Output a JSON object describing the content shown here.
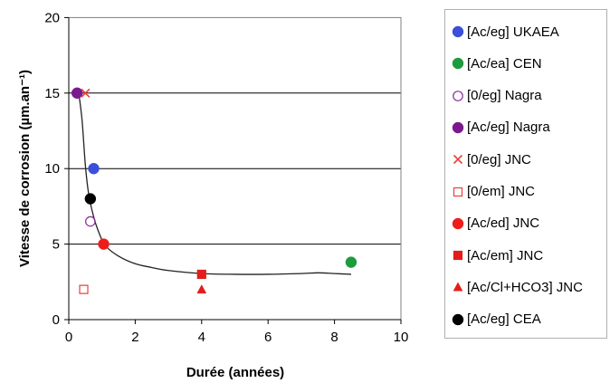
{
  "chart_data": {
    "type": "scatter",
    "title": "",
    "xlabel": "Durée (années)",
    "ylabel": "Vitesse de corrosion (µm.an⁻¹)",
    "xlim": [
      0,
      10
    ],
    "ylim": [
      0,
      20
    ],
    "xticks": [
      "0",
      "2",
      "4",
      "6",
      "8",
      "10"
    ],
    "yticks": [
      "0",
      "5",
      "10",
      "15",
      "20"
    ],
    "grid": "horizontal",
    "legend_position": "right",
    "series": [
      {
        "name": "[Ac/eg] UKAEA",
        "marker": "circle",
        "color": "#3b4fd9",
        "filled": true,
        "points": [
          [
            0.75,
            10.0
          ]
        ]
      },
      {
        "name": "[Ac/ea] CEN",
        "marker": "circle",
        "color": "#1e9b3c",
        "filled": true,
        "points": [
          [
            8.5,
            3.8
          ]
        ]
      },
      {
        "name": "[0/eg] Nagra",
        "marker": "circle",
        "color": "#8a2a9a",
        "filled": false,
        "points": [
          [
            0.65,
            6.5
          ]
        ]
      },
      {
        "name": "[Ac/eg] Nagra",
        "marker": "circle",
        "color": "#7a1a8e",
        "filled": true,
        "points": [
          [
            0.25,
            15.0
          ]
        ]
      },
      {
        "name": "[0/eg] JNC",
        "marker": "x",
        "color": "#e8403a",
        "filled": false,
        "points": [
          [
            0.5,
            15.0
          ]
        ]
      },
      {
        "name": "[0/em] JNC",
        "marker": "square",
        "color": "#e8403a",
        "filled": false,
        "points": [
          [
            0.45,
            2.0
          ]
        ]
      },
      {
        "name": "[Ac/ed] JNC",
        "marker": "circle",
        "color": "#ef1c1c",
        "filled": true,
        "points": [
          [
            1.05,
            5.0
          ]
        ]
      },
      {
        "name": "[Ac/em] JNC",
        "marker": "square",
        "color": "#e31d1d",
        "filled": true,
        "points": [
          [
            4.0,
            3.0
          ]
        ]
      },
      {
        "name": "[Ac/Cl+HCO3] JNC",
        "marker": "triangle",
        "color": "#e31d1d",
        "filled": true,
        "points": [
          [
            4.0,
            2.0
          ]
        ]
      },
      {
        "name": "[Ac/eg] CEA",
        "marker": "circle",
        "color": "#000000",
        "filled": true,
        "points": [
          [
            0.65,
            8.0
          ]
        ]
      }
    ],
    "trend_line": [
      [
        0.3,
        15.0
      ],
      [
        0.4,
        13.2
      ],
      [
        0.5,
        10.2
      ],
      [
        0.6,
        8.3
      ],
      [
        0.75,
        6.8
      ],
      [
        0.9,
        5.8
      ],
      [
        1.1,
        4.9
      ],
      [
        1.5,
        4.2
      ],
      [
        2.0,
        3.7
      ],
      [
        2.5,
        3.45
      ],
      [
        3.0,
        3.25
      ],
      [
        4.0,
        3.05
      ],
      [
        5.0,
        3.0
      ],
      [
        6.0,
        3.0
      ],
      [
        7.0,
        3.05
      ],
      [
        7.5,
        3.1
      ],
      [
        8.0,
        3.05
      ],
      [
        8.5,
        3.0
      ]
    ]
  }
}
